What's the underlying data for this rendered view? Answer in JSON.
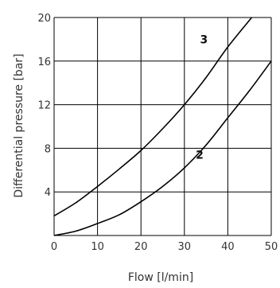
{
  "chart_data": {
    "type": "line",
    "xlabel": "Flow  [l/min]",
    "ylabel": "Differential pressure [bar]",
    "xlim": [
      0,
      50
    ],
    "ylim": [
      0,
      20
    ],
    "xticks": [
      0,
      10,
      20,
      30,
      40,
      50
    ],
    "yticks": [
      4,
      8,
      12,
      16,
      20
    ],
    "x_tick_labels": [
      "0",
      "10",
      "20",
      "30",
      "40",
      "50"
    ],
    "y_tick_labels": [
      "4",
      "8",
      "12",
      "16",
      "20"
    ],
    "grid": true,
    "legend": "none (curves labeled inline)",
    "colors": {
      "line": "#000000",
      "grid": "#000000"
    },
    "series": [
      {
        "name": "3",
        "x": [
          0,
          5,
          10,
          15,
          20,
          25,
          30,
          35,
          40,
          45.5
        ],
        "y": [
          1.8,
          3.0,
          4.5,
          6.1,
          7.8,
          9.8,
          12.0,
          14.5,
          17.3,
          20.0
        ]
      },
      {
        "name": "2",
        "x": [
          0,
          5,
          10,
          15,
          20,
          25,
          30,
          35,
          40,
          45,
          50
        ],
        "y": [
          0.0,
          0.4,
          1.1,
          1.9,
          3.1,
          4.5,
          6.2,
          8.3,
          10.8,
          13.3,
          16.0
        ]
      }
    ]
  }
}
